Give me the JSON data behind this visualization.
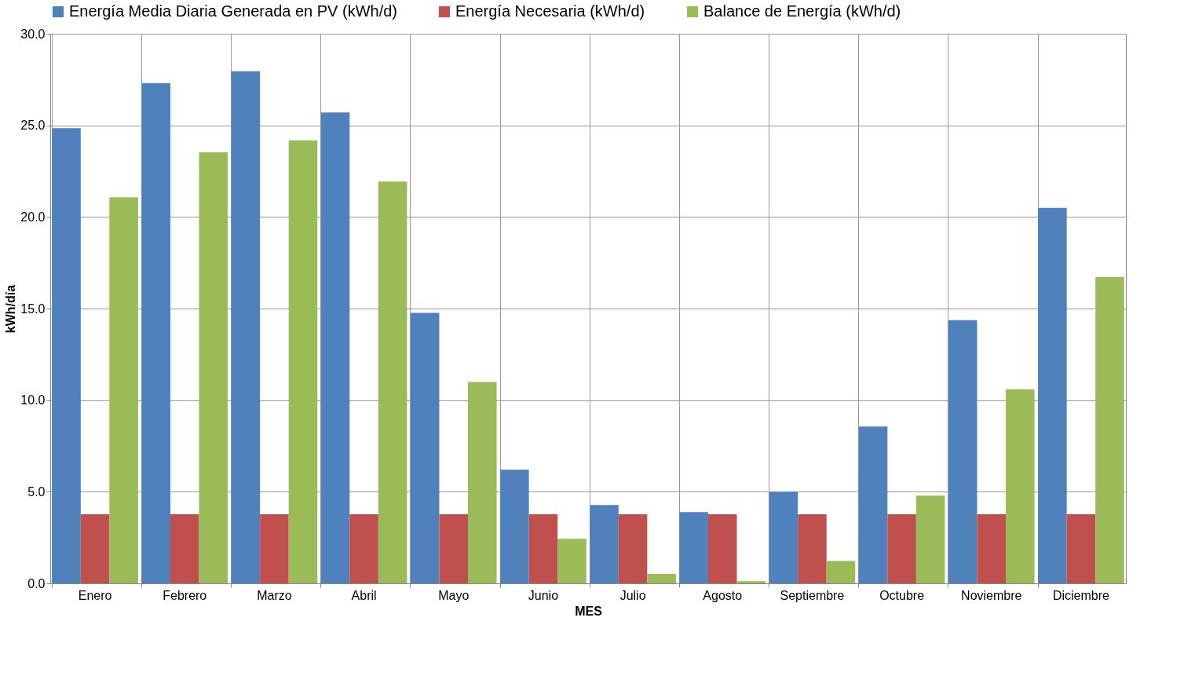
{
  "chart_data": {
    "type": "bar",
    "xlabel": "MES",
    "ylabel": "kWh/día",
    "categories": [
      "Enero",
      "Febrero",
      "Marzo",
      "Abril",
      "Mayo",
      "Junio",
      "Julio",
      "Agosto",
      "Septiembre",
      "Octubre",
      "Noviembre",
      "Diciembre"
    ],
    "series": [
      {
        "name": "Energía Media Diaria Generada en PV (kWh/d)",
        "color": "#4f81bd",
        "values": [
          24.85,
          27.3,
          27.95,
          25.7,
          14.76,
          6.2,
          4.28,
          3.89,
          4.99,
          8.56,
          14.37,
          20.5
        ]
      },
      {
        "name": "Energía Necesaria (kWh/d)",
        "color": "#c0504d",
        "values": [
          3.77,
          3.77,
          3.77,
          3.77,
          3.77,
          3.77,
          3.77,
          3.77,
          3.77,
          3.77,
          3.77,
          3.77
        ]
      },
      {
        "name": "Balance de Energía (kWh/d)",
        "color": "#9bbb59",
        "values": [
          21.08,
          23.53,
          24.18,
          21.93,
          10.99,
          2.43,
          0.51,
          0.12,
          1.22,
          4.79,
          10.6,
          16.73
        ]
      }
    ],
    "ylim": [
      0,
      30
    ],
    "yticks": [
      {
        "value": 0,
        "label": "0.0"
      },
      {
        "value": 5,
        "label": "5.0"
      },
      {
        "value": 10,
        "label": "10.0"
      },
      {
        "value": 15,
        "label": "15.0"
      },
      {
        "value": 20,
        "label": "20.0"
      },
      {
        "value": 25,
        "label": "25.0"
      },
      {
        "value": 30,
        "label": "30.0"
      }
    ],
    "grid": true,
    "legend": "top"
  }
}
